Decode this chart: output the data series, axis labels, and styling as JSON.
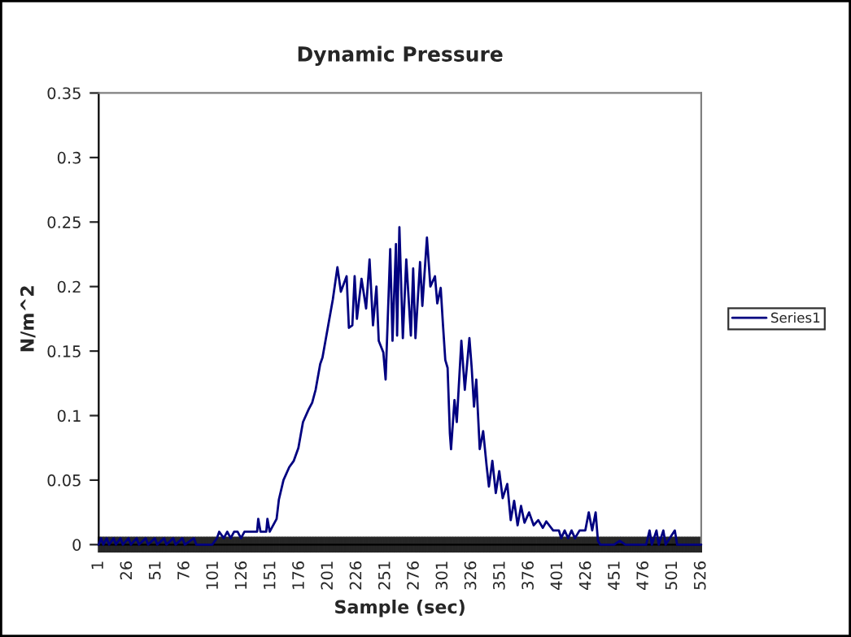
{
  "chart_data": {
    "type": "line",
    "title": "Dynamic Pressure",
    "xlabel": "Sample (sec)",
    "ylabel": "N/m^2",
    "x": [
      1,
      3,
      5,
      8,
      10,
      14,
      16,
      20,
      22,
      27,
      29,
      34,
      36,
      42,
      44,
      50,
      52,
      58,
      60,
      66,
      68,
      74,
      76,
      84,
      86,
      100,
      104,
      106,
      110,
      113,
      116,
      119,
      122,
      125,
      128,
      139,
      140,
      142,
      147,
      148,
      150,
      156,
      158,
      162,
      167,
      171,
      175,
      177,
      179,
      184,
      187,
      190,
      194,
      196,
      201,
      205,
      209,
      212,
      217,
      219,
      222,
      224,
      226,
      230,
      234,
      237,
      240,
      243,
      245,
      249,
      251,
      255,
      257,
      260,
      261,
      263,
      266,
      269,
      273,
      275,
      277,
      281,
      283,
      287,
      290,
      294,
      296,
      299,
      301,
      303,
      305,
      307,
      308,
      311,
      313,
      317,
      320,
      324,
      326,
      328,
      330,
      333,
      336,
      339,
      341,
      344,
      347,
      350,
      353,
      357,
      360,
      363,
      366,
      369,
      372,
      376,
      380,
      384,
      388,
      391,
      397,
      402,
      404,
      407,
      410,
      413,
      416,
      420,
      425,
      428,
      431,
      434,
      436,
      438,
      450,
      455,
      460,
      470,
      478,
      481,
      483,
      487,
      489,
      493,
      495,
      503,
      505,
      515,
      526
    ],
    "series": [
      {
        "name": "Series1",
        "color": "#000080",
        "values": [
          0,
          0.005,
          0,
          0.005,
          0,
          0.005,
          0,
          0.005,
          0,
          0.005,
          0,
          0.005,
          0,
          0.005,
          0,
          0.005,
          0,
          0.005,
          0,
          0.005,
          0,
          0.005,
          0,
          0.005,
          0,
          0,
          0.005,
          0.01,
          0.005,
          0.01,
          0.005,
          0.01,
          0.01,
          0.005,
          0.01,
          0.01,
          0.02,
          0.01,
          0.01,
          0.02,
          0.01,
          0.02,
          0.035,
          0.05,
          0.06,
          0.065,
          0.075,
          0.085,
          0.095,
          0.105,
          0.11,
          0.12,
          0.14,
          0.145,
          0.17,
          0.19,
          0.215,
          0.196,
          0.208,
          0.168,
          0.17,
          0.208,
          0.175,
          0.206,
          0.183,
          0.221,
          0.17,
          0.2,
          0.158,
          0.149,
          0.128,
          0.229,
          0.158,
          0.233,
          0.162,
          0.246,
          0.16,
          0.221,
          0.162,
          0.214,
          0.16,
          0.219,
          0.185,
          0.238,
          0.2,
          0.208,
          0.187,
          0.199,
          0.17,
          0.143,
          0.137,
          0.086,
          0.074,
          0.112,
          0.095,
          0.158,
          0.12,
          0.16,
          0.137,
          0.107,
          0.128,
          0.074,
          0.088,
          0.061,
          0.045,
          0.065,
          0.04,
          0.057,
          0.036,
          0.047,
          0.019,
          0.034,
          0.015,
          0.03,
          0.017,
          0.025,
          0.015,
          0.019,
          0.013,
          0.018,
          0.011,
          0.011,
          0.005,
          0.011,
          0.005,
          0.011,
          0.005,
          0.011,
          0.011,
          0.025,
          0.011,
          0.025,
          0.003,
          0,
          0,
          0.003,
          0,
          0,
          0,
          0.011,
          0,
          0.011,
          0,
          0.011,
          0,
          0.011,
          0,
          0,
          0
        ]
      }
    ],
    "xlim": [
      1,
      526
    ],
    "xticks": [
      1,
      26,
      51,
      76,
      101,
      126,
      151,
      176,
      201,
      226,
      251,
      276,
      301,
      326,
      351,
      376,
      401,
      426,
      451,
      476,
      501,
      526
    ],
    "ylim": [
      0,
      0.35
    ],
    "yticks": [
      0,
      0.05,
      0.1,
      0.15,
      0.2,
      0.25,
      0.3,
      0.35
    ],
    "legend": "right",
    "grid": false,
    "marker": "none",
    "line_style": "solid"
  }
}
